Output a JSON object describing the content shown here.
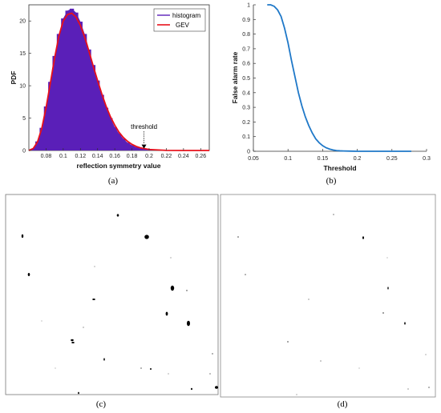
{
  "chart_data": [
    {
      "panel": "(a)",
      "type": "histogram",
      "xlabel": "reflection symmetry value",
      "ylabel": "PDF",
      "xlim": [
        0.06,
        0.27
      ],
      "ylim": [
        0,
        22.5
      ],
      "x_ticks": [
        "0.08",
        "0.1",
        "0.12",
        "0.14",
        "0.16",
        "0.18",
        "0.2",
        "0.22",
        "0.24",
        "0.26"
      ],
      "y_ticks": [
        "0",
        "5",
        "10",
        "15",
        "20"
      ],
      "legend": {
        "position": "top-right",
        "entries": [
          "histogram",
          "GEV"
        ]
      },
      "annotation": {
        "text": "threshold",
        "x": 0.194,
        "y": 0.3
      },
      "series": [
        {
          "name": "histogram",
          "color": "#5a1fb8",
          "x": [
            0.065,
            0.07,
            0.075,
            0.08,
            0.085,
            0.09,
            0.095,
            0.1,
            0.105,
            0.11,
            0.115,
            0.12,
            0.125,
            0.13,
            0.135,
            0.14,
            0.145,
            0.15,
            0.155,
            0.16,
            0.165,
            0.17,
            0.175,
            0.18,
            0.185,
            0.19,
            0.2,
            0.22,
            0.24,
            0.26
          ],
          "y": [
            0.3,
            1.4,
            3.5,
            6.8,
            10.6,
            14.6,
            18.0,
            20.4,
            21.6,
            21.9,
            21.3,
            19.9,
            18.0,
            15.6,
            13.2,
            10.8,
            8.6,
            6.6,
            5.0,
            3.6,
            2.6,
            1.8,
            1.2,
            0.8,
            0.5,
            0.3,
            0.1,
            0.02,
            0.0,
            0.0
          ]
        },
        {
          "name": "GEV",
          "color": "#e8101a",
          "x": [
            0.06,
            0.065,
            0.07,
            0.075,
            0.08,
            0.085,
            0.09,
            0.095,
            0.1,
            0.105,
            0.11,
            0.115,
            0.12,
            0.125,
            0.13,
            0.135,
            0.14,
            0.145,
            0.15,
            0.155,
            0.16,
            0.165,
            0.17,
            0.175,
            0.18,
            0.185,
            0.19,
            0.2,
            0.22,
            0.24,
            0.27
          ],
          "y": [
            0.0,
            0.3,
            1.3,
            3.4,
            6.6,
            10.4,
            14.3,
            17.7,
            20.0,
            21.0,
            21.2,
            20.6,
            19.3,
            17.5,
            15.3,
            13.0,
            10.8,
            8.7,
            6.8,
            5.2,
            3.9,
            2.8,
            2.0,
            1.4,
            0.95,
            0.62,
            0.4,
            0.15,
            0.02,
            0.0,
            0.0
          ]
        }
      ]
    },
    {
      "panel": "(b)",
      "type": "line",
      "xlabel": "Threshold",
      "ylabel": "False alarm rate",
      "xlim": [
        0.05,
        0.3
      ],
      "ylim": [
        0,
        1
      ],
      "x_ticks": [
        "0.05",
        "0.1",
        "0.15",
        "0.2",
        "0.25",
        "0.3"
      ],
      "y_ticks": [
        "0",
        "0.1",
        "0.2",
        "0.3",
        "0.4",
        "0.5",
        "0.6",
        "0.7",
        "0.8",
        "0.9",
        "1"
      ],
      "series": [
        {
          "color": "#1f78c8",
          "x": [
            0.07,
            0.075,
            0.08,
            0.085,
            0.09,
            0.095,
            0.1,
            0.105,
            0.11,
            0.115,
            0.12,
            0.125,
            0.13,
            0.135,
            0.14,
            0.145,
            0.15,
            0.155,
            0.16,
            0.165,
            0.17,
            0.175,
            0.18,
            0.19,
            0.2,
            0.22,
            0.25,
            0.278
          ],
          "y": [
            1.0,
            1.0,
            0.99,
            0.965,
            0.92,
            0.84,
            0.74,
            0.62,
            0.51,
            0.4,
            0.31,
            0.235,
            0.175,
            0.125,
            0.085,
            0.058,
            0.038,
            0.024,
            0.015,
            0.009,
            0.005,
            0.003,
            0.002,
            0.001,
            0.0,
            0.0,
            0.0,
            0.0
          ]
        }
      ]
    }
  ],
  "captions": {
    "a": "(a)",
    "b": "(b)",
    "c": "(c)",
    "d": "(d)"
  },
  "images": {
    "c": {
      "description": "binary detection map, left"
    },
    "d": {
      "description": "binary detection map, right"
    }
  }
}
